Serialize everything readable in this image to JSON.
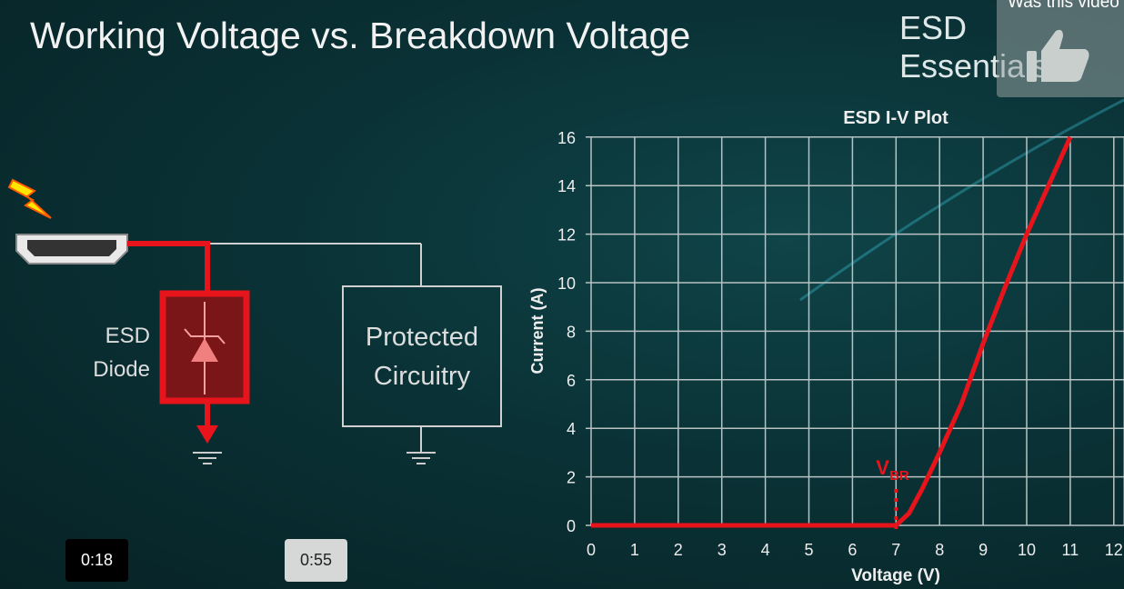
{
  "slide": {
    "title": "Working Voltage vs. Breakdown Voltage",
    "brand": "ESD Essentials"
  },
  "feedback": {
    "prompt": "Was this video",
    "icon": "thumbs-up-icon"
  },
  "diagram": {
    "diode_label_line1": "ESD",
    "diode_label_line2": "Diode",
    "circuit_label_line1": "Protected",
    "circuit_label_line2": "Circuitry",
    "icons": [
      "lightning-icon",
      "hdmi-connector-icon",
      "tvs-diode-icon",
      "ground-icon"
    ],
    "highlight_color": "#e8141c"
  },
  "player": {
    "time_markers": [
      "0:18",
      "0:55"
    ]
  },
  "chart_data": {
    "type": "line",
    "title": "ESD I-V Plot",
    "xlabel": "Voltage (V)",
    "ylabel": "Current (A)",
    "xlim": [
      0,
      12
    ],
    "ylim": [
      0,
      16
    ],
    "xticks": [
      "0",
      "1",
      "2",
      "3",
      "4",
      "5",
      "6",
      "7",
      "8",
      "9",
      "10",
      "11",
      "12"
    ],
    "yticks": [
      "0",
      "2",
      "4",
      "6",
      "8",
      "10",
      "12",
      "14",
      "16"
    ],
    "grid": true,
    "series": [
      {
        "color": "#e8141c",
        "x": [
          0,
          7,
          7.3,
          7.6,
          8,
          8.5,
          9,
          9.5,
          10,
          10.5,
          11
        ],
        "y": [
          0,
          0,
          0.5,
          1.5,
          3,
          5,
          7.5,
          9.8,
          12,
          14,
          16
        ]
      }
    ],
    "annotation": {
      "label": "V",
      "subscript": "BR",
      "x": 7
    }
  }
}
